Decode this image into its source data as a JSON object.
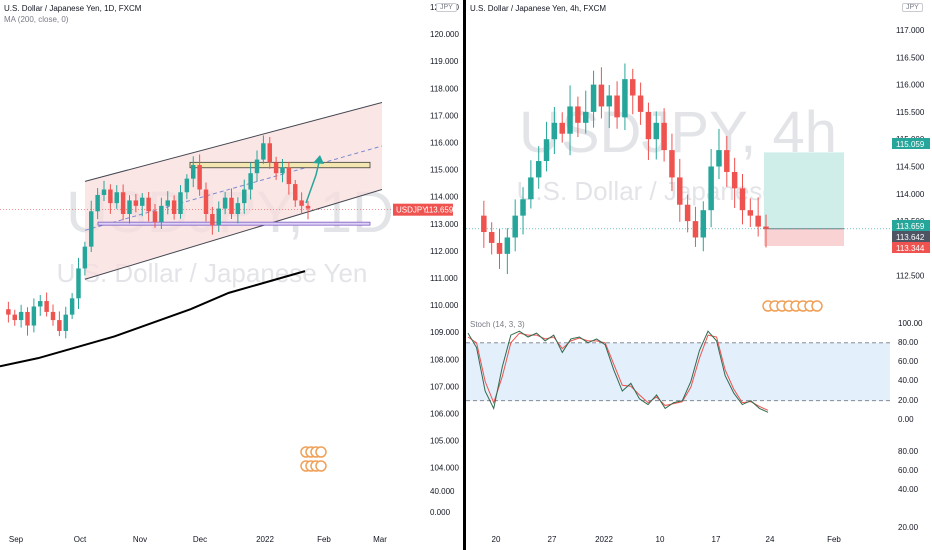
{
  "left": {
    "title": "U.S. Dollar / Japanese Yen, 1D, FXCM",
    "indicator": "MA (200, close, 0)",
    "currency": "JPY",
    "watermark_symbol": "USDJPY, 1D",
    "watermark_name": "U.S. Dollar / Japanese Yen",
    "price_label_symbol": "USDJPY",
    "last_price": "113.659",
    "y_ticks": [
      "121.000",
      "120.000",
      "119.000",
      "118.000",
      "117.000",
      "116.000",
      "115.000",
      "114.000",
      "113.000",
      "112.000",
      "111.000",
      "110.000",
      "109.000",
      "108.000",
      "107.000",
      "106.000",
      "105.000",
      "104.000",
      "40.000",
      "0.000"
    ],
    "x_ticks": [
      "Sep",
      "Oct",
      "Nov",
      "Dec",
      "2022",
      "Feb",
      "Mar"
    ]
  },
  "right": {
    "title": "U.S. Dollar / Japanese Yen, 4h, FXCM",
    "currency": "JPY",
    "watermark_symbol": "USDJPY, 4h",
    "watermark_name": "U.S. Dollar / Japanese Yen",
    "price_labels": [
      "115.059",
      "113.659",
      "113.642",
      "113.344"
    ],
    "y_ticks": [
      "117.000",
      "116.500",
      "116.000",
      "115.500",
      "115.000",
      "114.500",
      "114.000",
      "113.500",
      "113.000",
      "112.500"
    ],
    "x_ticks": [
      "20",
      "27",
      "2022",
      "10",
      "17",
      "24",
      "Feb"
    ],
    "stoch_label": "Stoch (14, 3, 3)",
    "stoch_ticks": [
      "100.00",
      "80.00",
      "60.00",
      "40.00",
      "20.00",
      "0.00",
      "80.00",
      "60.00",
      "40.00",
      "20.00"
    ]
  },
  "chart_data": [
    {
      "type": "candlestick",
      "title": "U.S. Dollar / Japanese Yen, 1D, FXCM",
      "x_ticks": [
        "Sep",
        "Oct",
        "Nov",
        "Dec",
        "2022",
        "Feb",
        "Mar"
      ],
      "ylim": [
        103.5,
        121
      ],
      "last_price": 113.659,
      "series": [
        {
          "name": "MA (200, close, 0)",
          "values": [
            107.9,
            108.2,
            108.6,
            109.0,
            109.5,
            110.0,
            110.6,
            111.0,
            111.4
          ]
        }
      ],
      "channel": {
        "upper_start": 114.7,
        "upper_end": 117.6,
        "lower_start": 111.1,
        "lower_end": 114.4
      },
      "resistance_zone": [
        115.2,
        115.4
      ],
      "support_zone": [
        113.1,
        113.2
      ],
      "price_path": [
        110.0,
        109.8,
        109.6,
        109.9,
        109.4,
        110.1,
        110.3,
        109.9,
        109.6,
        109.2,
        109.8,
        110.4,
        111.5,
        112.3,
        113.6,
        114.2,
        114.4,
        113.9,
        114.3,
        113.5,
        114.0,
        113.8,
        114.1,
        113.6,
        113.2,
        113.8,
        114.0,
        113.5,
        114.3,
        114.8,
        115.3,
        114.4,
        113.5,
        113.1,
        113.7,
        114.1,
        113.5,
        113.9,
        114.4,
        115.0,
        115.5,
        116.1,
        115.4,
        115.0,
        115.2,
        114.6,
        114.0,
        113.8,
        113.7
      ]
    },
    {
      "type": "candlestick",
      "title": "U.S. Dollar / Japanese Yen, 4h, FXCM",
      "x_ticks": [
        "20",
        "27",
        "2022",
        "10",
        "17",
        "24",
        "Feb"
      ],
      "ylim": [
        112.3,
        117.3
      ],
      "last_price": 113.659,
      "position": {
        "entry": 113.659,
        "target": 115.059,
        "stop": 113.344
      },
      "price_path": [
        113.9,
        113.6,
        113.4,
        113.2,
        113.5,
        113.9,
        114.2,
        114.6,
        114.9,
        115.3,
        115.6,
        115.4,
        115.9,
        115.6,
        115.8,
        116.3,
        115.9,
        116.1,
        115.7,
        116.4,
        116.1,
        115.8,
        115.3,
        115.6,
        115.1,
        114.6,
        114.1,
        113.8,
        113.5,
        114.0,
        114.8,
        115.1,
        114.7,
        114.4,
        114.0,
        113.9,
        113.7,
        113.659
      ],
      "stochastic": {
        "name": "Stoch (14, 3, 3)",
        "levels": [
          80,
          20
        ],
        "k_values": [
          90,
          75,
          30,
          12,
          55,
          88,
          92,
          86,
          90,
          82,
          88,
          70,
          84,
          86,
          80,
          84,
          78,
          52,
          30,
          38,
          22,
          16,
          26,
          12,
          18,
          20,
          40,
          72,
          92,
          82,
          46,
          28,
          16,
          20,
          12,
          8
        ],
        "d_values": [
          86,
          80,
          40,
          18,
          45,
          80,
          90,
          88,
          88,
          84,
          86,
          74,
          82,
          85,
          82,
          82,
          80,
          58,
          36,
          35,
          26,
          18,
          24,
          15,
          17,
          19,
          34,
          64,
          88,
          86,
          52,
          32,
          18,
          19,
          14,
          10
        ]
      }
    }
  ]
}
